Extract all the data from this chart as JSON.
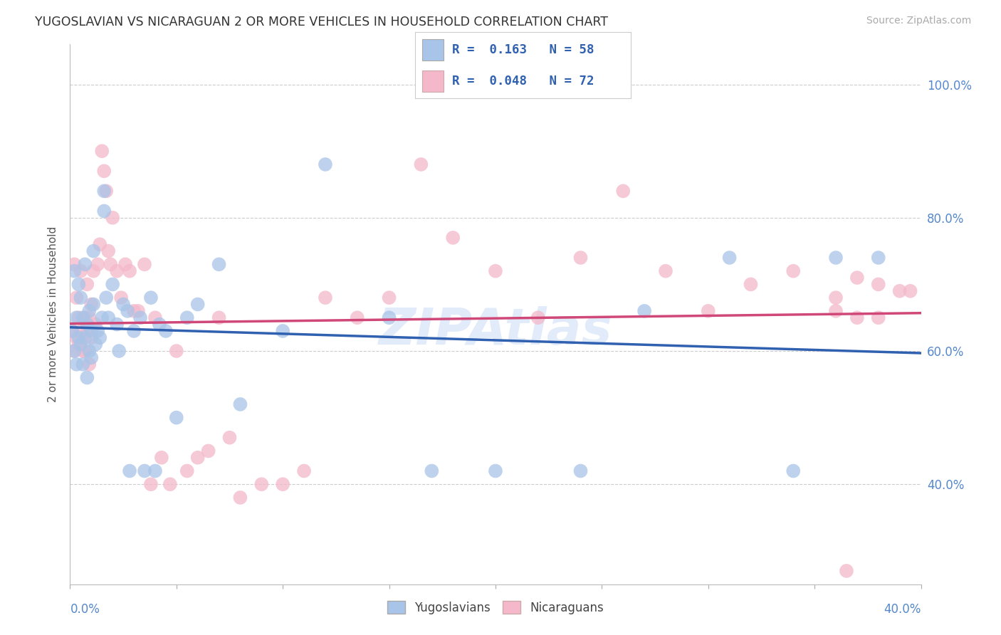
{
  "title": "YUGOSLAVIAN VS NICARAGUAN 2 OR MORE VEHICLES IN HOUSEHOLD CORRELATION CHART",
  "source": "Source: ZipAtlas.com",
  "ylabel": "2 or more Vehicles in Household",
  "ytick_labels": [
    "100.0%",
    "80.0%",
    "60.0%",
    "40.0%"
  ],
  "ytick_values": [
    1.0,
    0.8,
    0.6,
    0.4
  ],
  "xlim": [
    0.0,
    0.4
  ],
  "ylim": [
    0.25,
    1.06
  ],
  "color_yugoslavian": "#a8c4e8",
  "color_nicaraguan": "#f4b8ca",
  "line_color_yugoslavian": "#3060b0",
  "line_color_nicaraguan": "#d04878",
  "background_color": "#ffffff",
  "grid_color": "#cccccc",
  "yug_x": [
    0.001,
    0.002,
    0.002,
    0.003,
    0.003,
    0.004,
    0.004,
    0.005,
    0.005,
    0.006,
    0.006,
    0.007,
    0.007,
    0.008,
    0.008,
    0.009,
    0.009,
    0.01,
    0.01,
    0.011,
    0.011,
    0.012,
    0.013,
    0.014,
    0.015,
    0.016,
    0.016,
    0.017,
    0.018,
    0.02,
    0.022,
    0.023,
    0.025,
    0.027,
    0.028,
    0.03,
    0.033,
    0.035,
    0.038,
    0.04,
    0.042,
    0.045,
    0.05,
    0.055,
    0.06,
    0.07,
    0.08,
    0.1,
    0.12,
    0.15,
    0.17,
    0.2,
    0.24,
    0.27,
    0.31,
    0.34,
    0.36,
    0.38
  ],
  "yug_y": [
    0.63,
    0.72,
    0.6,
    0.65,
    0.58,
    0.7,
    0.62,
    0.68,
    0.61,
    0.65,
    0.58,
    0.73,
    0.62,
    0.64,
    0.56,
    0.6,
    0.66,
    0.63,
    0.59,
    0.75,
    0.67,
    0.61,
    0.63,
    0.62,
    0.65,
    0.84,
    0.81,
    0.68,
    0.65,
    0.7,
    0.64,
    0.6,
    0.67,
    0.66,
    0.42,
    0.63,
    0.65,
    0.42,
    0.68,
    0.42,
    0.64,
    0.63,
    0.5,
    0.65,
    0.67,
    0.73,
    0.52,
    0.63,
    0.88,
    0.65,
    0.42,
    0.42,
    0.42,
    0.66,
    0.74,
    0.42,
    0.74,
    0.74
  ],
  "nic_x": [
    0.001,
    0.002,
    0.002,
    0.003,
    0.003,
    0.004,
    0.004,
    0.005,
    0.005,
    0.006,
    0.006,
    0.007,
    0.007,
    0.008,
    0.008,
    0.009,
    0.009,
    0.01,
    0.01,
    0.011,
    0.012,
    0.013,
    0.014,
    0.015,
    0.016,
    0.017,
    0.018,
    0.019,
    0.02,
    0.022,
    0.024,
    0.026,
    0.028,
    0.03,
    0.032,
    0.035,
    0.038,
    0.04,
    0.043,
    0.047,
    0.05,
    0.055,
    0.06,
    0.065,
    0.07,
    0.075,
    0.08,
    0.09,
    0.1,
    0.11,
    0.12,
    0.135,
    0.15,
    0.165,
    0.18,
    0.2,
    0.22,
    0.24,
    0.26,
    0.28,
    0.3,
    0.32,
    0.34,
    0.36,
    0.37,
    0.38,
    0.39,
    0.395,
    0.38,
    0.37,
    0.365,
    0.36
  ],
  "nic_y": [
    0.63,
    0.73,
    0.6,
    0.68,
    0.62,
    0.65,
    0.61,
    0.63,
    0.72,
    0.62,
    0.6,
    0.65,
    0.6,
    0.7,
    0.63,
    0.65,
    0.58,
    0.67,
    0.62,
    0.72,
    0.64,
    0.73,
    0.76,
    0.9,
    0.87,
    0.84,
    0.75,
    0.73,
    0.8,
    0.72,
    0.68,
    0.73,
    0.72,
    0.66,
    0.66,
    0.73,
    0.4,
    0.65,
    0.44,
    0.4,
    0.6,
    0.42,
    0.44,
    0.45,
    0.65,
    0.47,
    0.38,
    0.4,
    0.4,
    0.42,
    0.68,
    0.65,
    0.68,
    0.88,
    0.77,
    0.72,
    0.65,
    0.74,
    0.84,
    0.72,
    0.66,
    0.7,
    0.72,
    0.66,
    0.71,
    0.65,
    0.69,
    0.69,
    0.7,
    0.65,
    0.27,
    0.68
  ]
}
